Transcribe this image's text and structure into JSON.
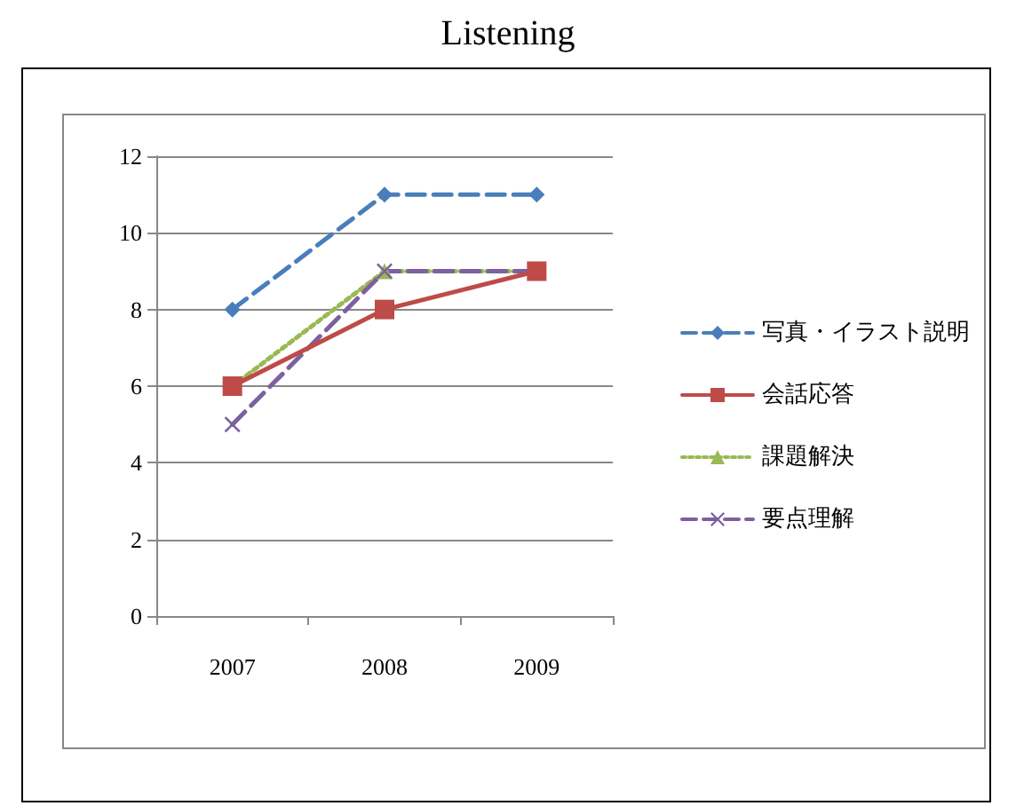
{
  "chart_data": {
    "type": "line",
    "title": "Listening",
    "categories": [
      "2007",
      "2008",
      "2009"
    ],
    "series": [
      {
        "name": "写真・イラスト説明",
        "color": "#4a7ebb",
        "values": [
          8,
          11,
          11
        ],
        "marker": "diamond",
        "line_style": "dashed"
      },
      {
        "name": "会話応答",
        "color": "#be4b48",
        "values": [
          6,
          8,
          9
        ],
        "marker": "square",
        "line_style": "solid"
      },
      {
        "name": "課題解決",
        "color": "#98b954",
        "values": [
          6,
          9,
          9
        ],
        "marker": "triangle",
        "line_style": "dotted"
      },
      {
        "name": "要点理解",
        "color": "#7d60a0",
        "values": [
          5,
          9,
          9
        ],
        "marker": "cross",
        "line_style": "dashed"
      }
    ],
    "ylim": [
      0,
      12
    ],
    "yticks": [
      0,
      2,
      4,
      6,
      8,
      10,
      12
    ],
    "grid": "y",
    "legend": "right"
  }
}
